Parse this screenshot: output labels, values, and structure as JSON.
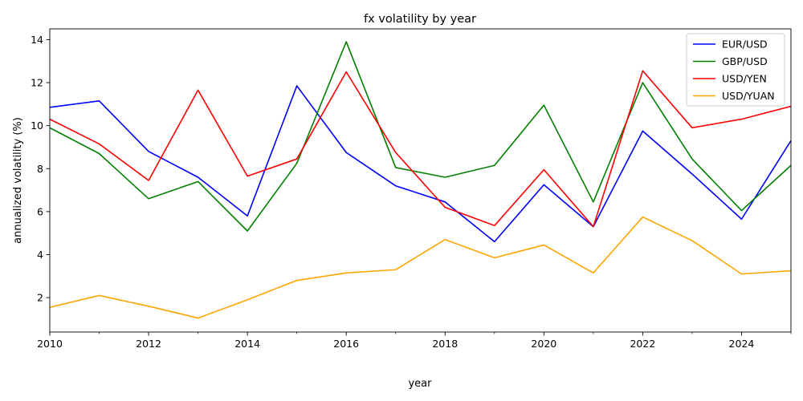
{
  "chart_data": {
    "type": "line",
    "title": "fx volatility by year",
    "xlabel": "year",
    "ylabel": "annualized volatility (%)",
    "xlim": [
      2010,
      2025
    ],
    "ylim": [
      0.4,
      14.5
    ],
    "x_ticks": [
      2010,
      2012,
      2014,
      2016,
      2018,
      2020,
      2022,
      2024
    ],
    "x_minor_ticks": [
      2011,
      2013,
      2015,
      2017,
      2019,
      2021,
      2023,
      2025
    ],
    "y_ticks": [
      2,
      4,
      6,
      8,
      10,
      12,
      14
    ],
    "grid": false,
    "legend_position": "top-right",
    "x": [
      2010,
      2011,
      2012,
      2013,
      2014,
      2015,
      2016,
      2017,
      2018,
      2019,
      2020,
      2021,
      2022,
      2023,
      2024,
      2025
    ],
    "series": [
      {
        "name": "EUR/USD",
        "color": "#0000ff",
        "values": [
          10.85,
          11.15,
          8.8,
          7.6,
          5.8,
          11.85,
          8.75,
          7.2,
          6.45,
          4.6,
          7.25,
          5.3,
          9.75,
          7.75,
          5.65,
          9.3
        ]
      },
      {
        "name": "GBP/USD",
        "color": "#008000",
        "values": [
          9.9,
          8.7,
          6.6,
          7.4,
          5.1,
          8.25,
          13.9,
          8.05,
          7.6,
          8.15,
          10.95,
          6.45,
          12.0,
          8.45,
          6.05,
          8.15
        ]
      },
      {
        "name": "USD/YEN",
        "color": "#ff0000",
        "values": [
          10.3,
          9.15,
          7.45,
          11.65,
          7.65,
          8.45,
          12.5,
          8.75,
          6.2,
          5.35,
          7.95,
          5.3,
          12.55,
          9.9,
          10.3,
          10.9
        ]
      },
      {
        "name": "USD/YUAN",
        "color": "#ffa500",
        "values": [
          1.55,
          2.1,
          1.6,
          1.05,
          1.9,
          2.8,
          3.15,
          3.3,
          4.7,
          3.85,
          4.45,
          3.15,
          5.75,
          4.65,
          3.1,
          3.25
        ]
      }
    ]
  }
}
